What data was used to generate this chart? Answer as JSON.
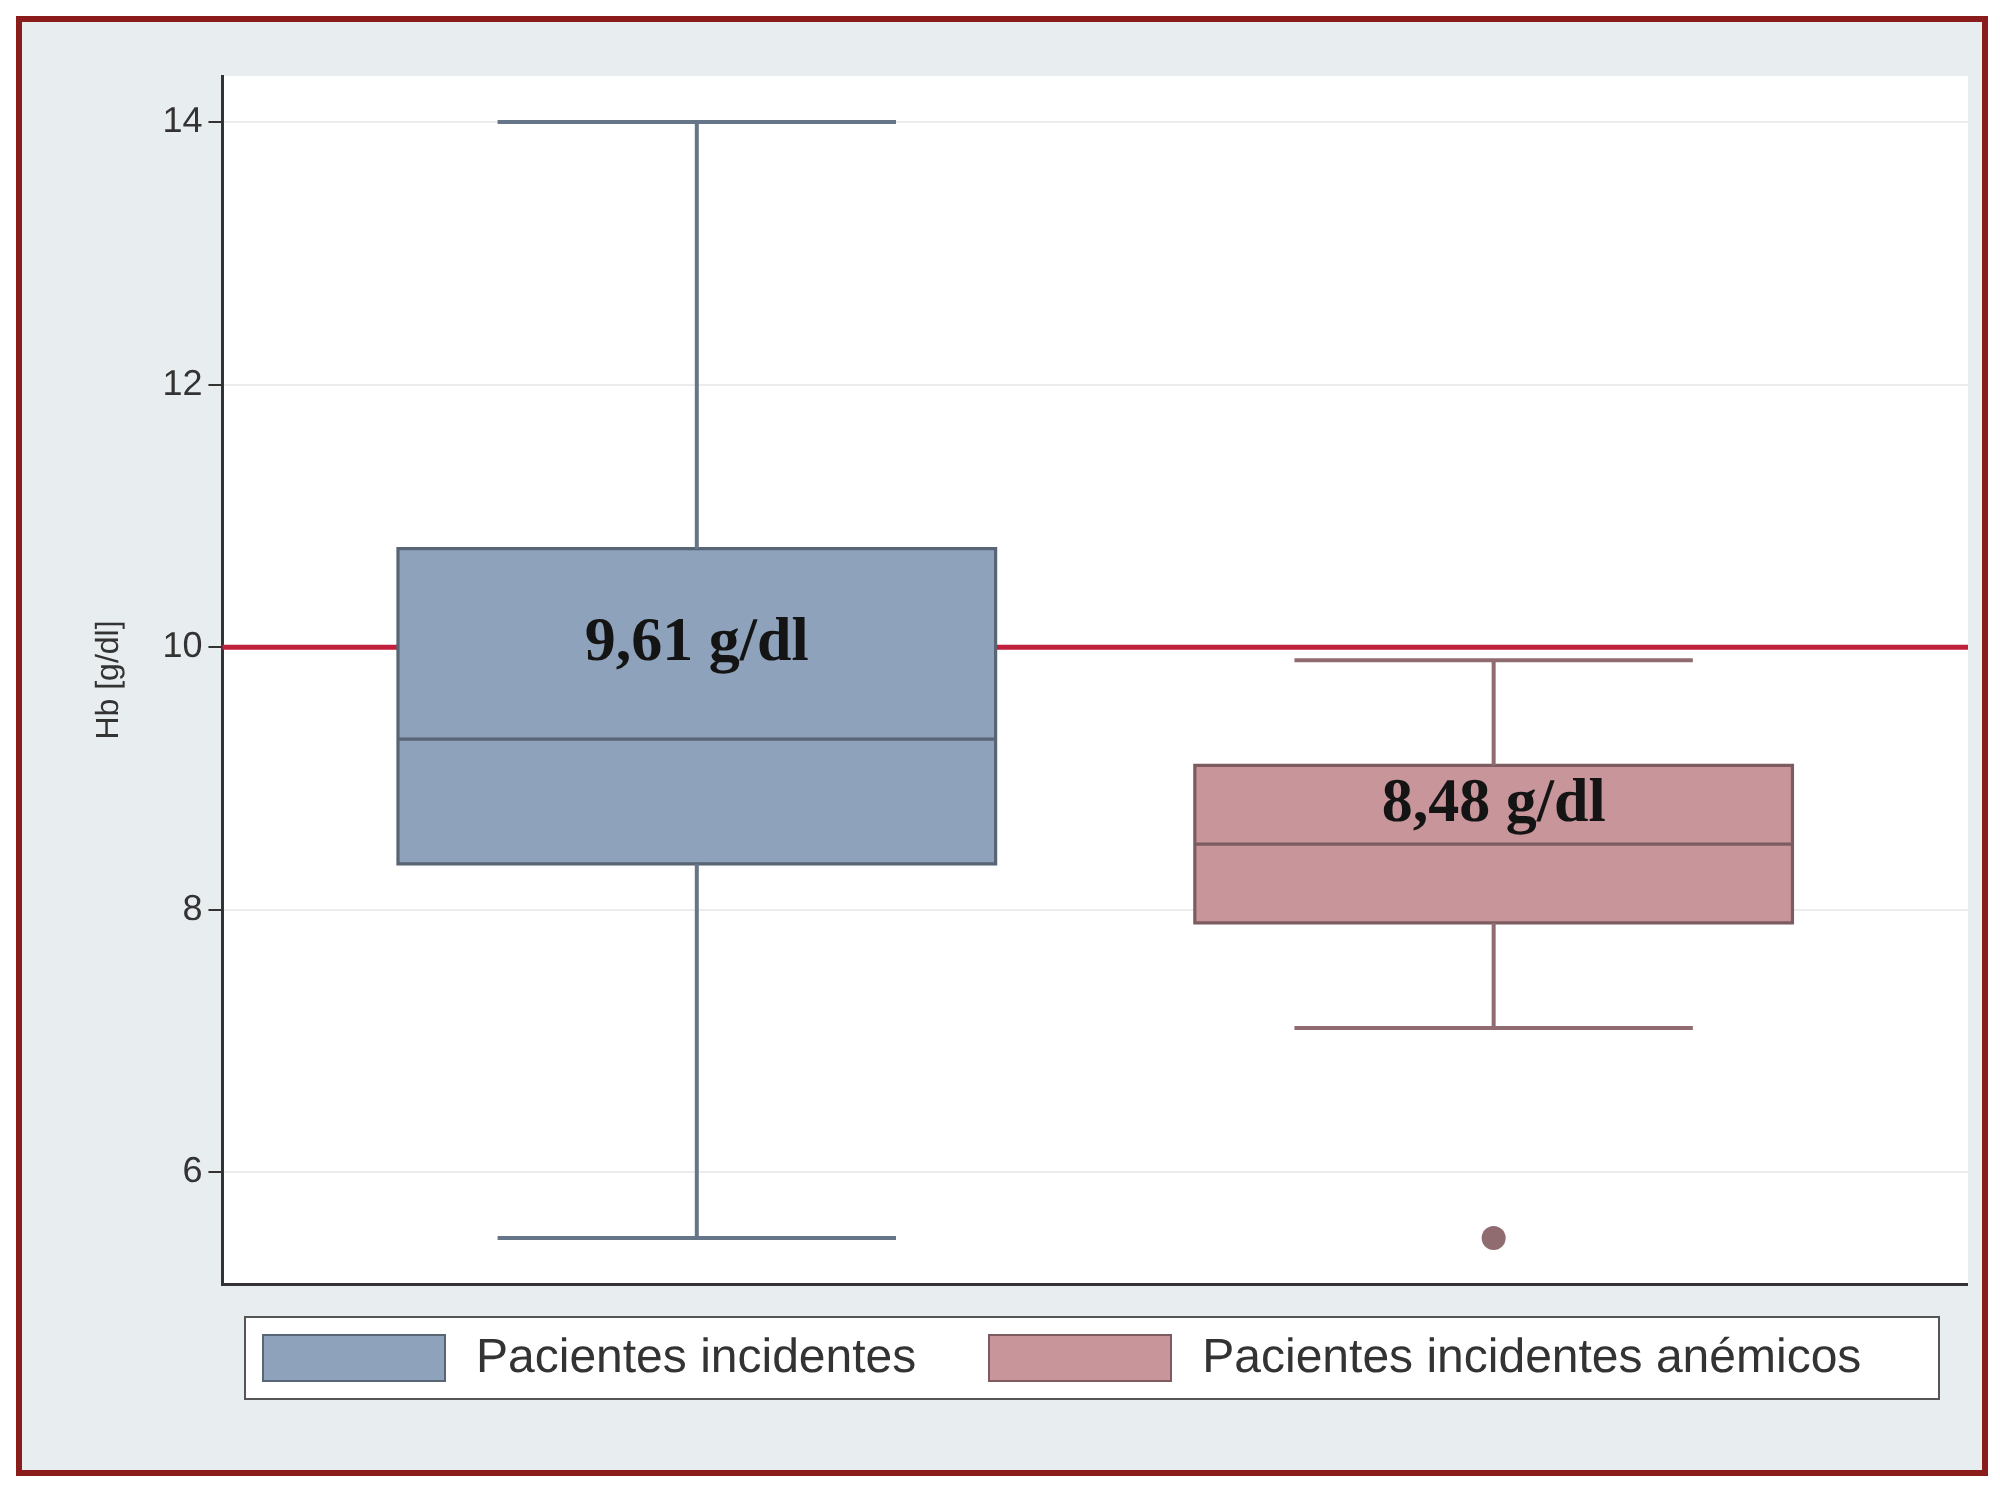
{
  "chart_data": {
    "type": "box",
    "categories": [
      null
    ],
    "ylabel": "Hb [g/dl]",
    "series": [
      {
        "name": "Pacientes incidentes",
        "color": "#8ea3bb",
        "boxes": [
          {
            "low": 5.5,
            "q1": 8.35,
            "median": 9.3,
            "q3": 10.75,
            "high": 14
          }
        ]
      },
      {
        "name": "Pacientes incidentes anémicos",
        "color": "#c8959b",
        "boxes": [
          {
            "low": 7.1,
            "q1": 7.9,
            "median": 8.5,
            "q3": 9.1,
            "high": 9.9,
            "outliers": [
              5.5
            ]
          }
        ]
      }
    ],
    "ylim": [
      5.15,
      14.35
    ],
    "yticks": [
      6,
      8,
      10,
      12,
      14
    ],
    "grid": "y",
    "legend": "bottom",
    "ref_lines": [
      {
        "axis": "y",
        "value": 10,
        "color": "#c0203c"
      }
    ],
    "annotations": [
      "9,61 g/dl",
      "8,48 g/dl"
    ]
  }
}
